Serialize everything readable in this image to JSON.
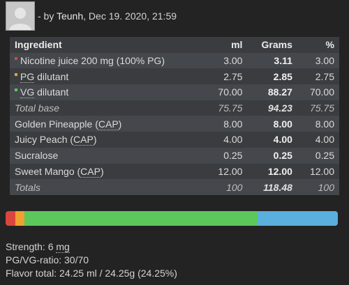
{
  "byline": {
    "prefix": "- by ",
    "author": "Teunh",
    "date": ", Dec 19. 2020, 21:59"
  },
  "table": {
    "headers": {
      "ingredient": "Ingredient",
      "ml": "ml",
      "grams": "Grams",
      "pct": "%"
    },
    "rows": [
      {
        "pre": "Nicotine juice 200 mg (100% PG)",
        "abbr": "",
        "post": "",
        "ml": "3.00",
        "grams": "3.11",
        "pct": "3.00",
        "square": "#d9463e"
      },
      {
        "pre": "",
        "abbr": "PG",
        "post": " dilutant",
        "ml": "2.75",
        "grams": "2.85",
        "pct": "2.75",
        "square": "#f0a030"
      },
      {
        "pre": "",
        "abbr": "VG",
        "post": " dilutant",
        "ml": "70.00",
        "grams": "88.27",
        "pct": "70.00",
        "square": "#5cc85c"
      },
      {
        "pre": "Total base",
        "abbr": "",
        "post": "",
        "ml": "75.75",
        "grams": "94.23",
        "pct": "75.75"
      },
      {
        "pre": "Golden Pineapple (",
        "abbr": "CAP",
        "post": ")",
        "ml": "8.00",
        "grams": "8.00",
        "pct": "8.00"
      },
      {
        "pre": "Juicy Peach (",
        "abbr": "CAP",
        "post": ")",
        "ml": "4.00",
        "grams": "4.00",
        "pct": "4.00"
      },
      {
        "pre": "Sucralose",
        "abbr": "",
        "post": "",
        "ml": "0.25",
        "grams": "0.25",
        "pct": "0.25"
      },
      {
        "pre": "Sweet Mango (",
        "abbr": "CAP",
        "post": ")",
        "ml": "12.00",
        "grams": "12.00",
        "pct": "12.00"
      },
      {
        "pre": "Totals",
        "abbr": "",
        "post": "",
        "ml": "100",
        "grams": "118.48",
        "pct": "100"
      }
    ]
  },
  "mix_bar": {
    "segments": [
      {
        "label": "Nicotine",
        "pct": 3.0,
        "color": "#d9463e"
      },
      {
        "label": "PG",
        "pct": 2.75,
        "color": "#f0a030"
      },
      {
        "label": "VG",
        "pct": 70.0,
        "color": "#5cc85c"
      },
      {
        "label": "Flavor",
        "pct": 24.25,
        "color": "#5aafdc"
      }
    ]
  },
  "stats": {
    "strength_label": "Strength: 6 ",
    "strength_unit": "mg",
    "ratio": "PG/VG-ratio: 30/70",
    "flavor_total": "Flavor total: 24.25 ml / 24.25g (24.25%)"
  }
}
